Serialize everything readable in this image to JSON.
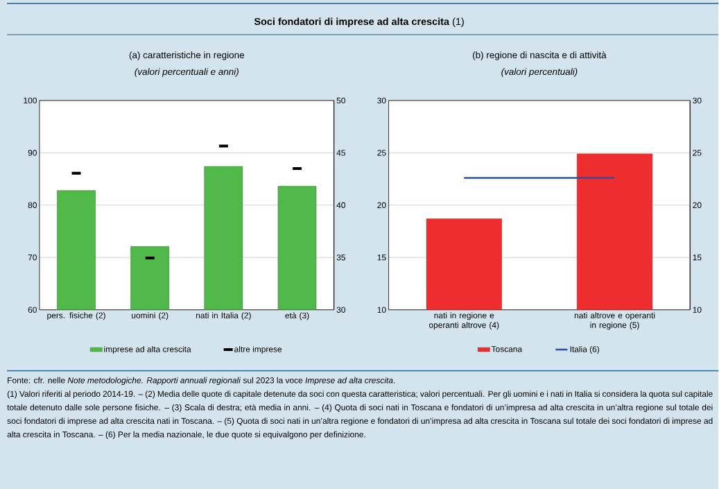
{
  "chart_data": [
    {
      "type": "bar",
      "title": "(a) caratteristiche in regione",
      "subtitle": "(valori percentuali e anni)",
      "categories": [
        "pers. fisiche (2)",
        "uomini (2)",
        "nati in Italia (2)",
        "età (3)"
      ],
      "ylim": [
        60,
        100
      ],
      "yticks": [
        60,
        70,
        80,
        90,
        100
      ],
      "y2lim": [
        30,
        50
      ],
      "y2ticks": [
        30,
        35,
        40,
        45,
        50
      ],
      "grid": "y",
      "legend": "bottom",
      "series": [
        {
          "name": "imprese ad alta crescita",
          "color": "#50b848",
          "values": [
            82.8,
            72.1,
            87.4,
            null
          ]
        },
        {
          "color": "#50b848",
          "axis": "y2",
          "values": [
            null,
            null,
            null,
            41.8
          ]
        },
        {
          "name": "altre imprese",
          "type": "scatter",
          "color": "#000000",
          "values": [
            86.1,
            69.9,
            91.3,
            null
          ]
        },
        {
          "type": "scatter",
          "color": "#000000",
          "axis": "y2",
          "values": [
            null,
            null,
            null,
            43.5
          ]
        }
      ]
    },
    {
      "type": "bar",
      "title": "(b) regione di nascita e di attività",
      "subtitle": "(valori percentuali)",
      "categories": [
        "nati in regione e operanti altrove (4)",
        "nati altrove e operanti in regione (5)"
      ],
      "ylim": [
        10,
        30
      ],
      "yticks": [
        10,
        15,
        20,
        25,
        30
      ],
      "y2lim": [
        10,
        30
      ],
      "y2ticks": [
        10,
        15,
        20,
        25,
        30
      ],
      "grid": "y",
      "legend": "bottom",
      "series": [
        {
          "name": "Toscana",
          "color": "#ee2e2e",
          "values": [
            18.7,
            24.9
          ]
        },
        {
          "name": "Italia (6)",
          "type": "line",
          "color": "#2157a6",
          "values": [
            22.6,
            22.6
          ]
        }
      ]
    },
    {
      "type": "other",
      "title": "**Soci fondatori di imprese ad alta crescita** (1)",
      "annotations": [
        "Fonte: cfr. nelle *Note metodologiche. Rapporti annuali regionali* sul 2023 la voce *Imprese ad alta crescita*.",
        "(1) Valori riferiti al periodo 2014-19. – (2) Media delle quote di capitale detenute da soci con questa caratteristica; valori percentuali. Per gli uomini e i nati in Italia si considera la quota sul capitale totale detenuto dalle sole persone fisiche. – (3) Scala di destra; età media in anni. – (4) Quota di soci nati in Toscana e fondatori di un’impresa ad alta crescita in un’altra regione sul totale dei soci fondatori di imprese ad alta crescita nati in Toscana. – (5) Quota di soci nati in un’altra regione e fondatori di un’impresa ad alta crescita in Toscana sul totale dei soci fondatori di imprese ad alta crescita in Toscana. – (6) Per la media nazionale, le due quote si equivalgono per definizione."
      ]
    }
  ]
}
